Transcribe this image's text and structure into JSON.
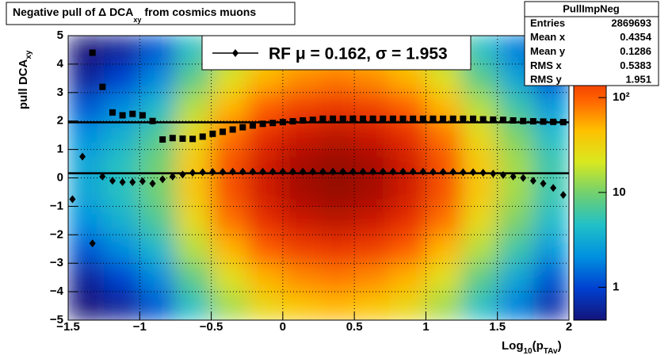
{
  "chart_data": {
    "type": "heatmap",
    "title_parts": [
      "Negative pull of Δ DCA",
      "xy",
      " from cosmics muons"
    ],
    "xlabel_parts": [
      "Log",
      "10",
      "(p",
      "TAv",
      ")"
    ],
    "ylabel_parts": [
      "pull DCA",
      "xy"
    ],
    "xlim": [
      -1.5,
      2
    ],
    "ylim": [
      -5,
      5
    ],
    "xticks": [
      {
        "value": -1.5,
        "label": "−1.5"
      },
      {
        "value": -1,
        "label": "−1"
      },
      {
        "value": -0.5,
        "label": "−0.5"
      },
      0,
      0.5,
      1,
      1.5,
      2
    ],
    "yticks": [
      {
        "value": -5,
        "label": "−5"
      },
      {
        "value": -4,
        "label": "−4"
      },
      {
        "value": -3,
        "label": "−3"
      },
      {
        "value": -2,
        "label": "−2"
      },
      {
        "value": -1,
        "label": "−1"
      },
      0,
      1,
      2,
      3,
      4,
      5
    ],
    "grid": true,
    "zlim": [
      0.45,
      450
    ],
    "zscale": "log",
    "zticks": [
      1,
      10,
      {
        "value": 100,
        "label": "10²"
      }
    ],
    "palette": [
      "#14147a",
      "#0040d0",
      "#0090e0",
      "#20c0c8",
      "#70d070",
      "#d8e820",
      "#ffc000",
      "#ff6000",
      "#e02000",
      "#800000"
    ],
    "heatmap": {
      "xbins": [
        -1.5,
        -1.25,
        -1,
        -0.75,
        -0.5,
        -0.25,
        0,
        0.25,
        0.5,
        0.75,
        1,
        1.25,
        1.5,
        1.75,
        2
      ],
      "ybins": [
        -5,
        -4,
        -3,
        -2,
        -1,
        0,
        1,
        2,
        3,
        4,
        5
      ],
      "z": [
        [
          0.4,
          0.6,
          1.2,
          4.8,
          14,
          30,
          42,
          48,
          42,
          30,
          14,
          4.8,
          1.8,
          0.7
        ],
        [
          0.6,
          1,
          2,
          8,
          24,
          50,
          70,
          80,
          70,
          50,
          24,
          8,
          3,
          1.2
        ],
        [
          1.2,
          2,
          4,
          16,
          48,
          100,
          140,
          160,
          140,
          100,
          48,
          16,
          6,
          2.4
        ],
        [
          2.1,
          3.5,
          7,
          28,
          84,
          175,
          245,
          280,
          245,
          175,
          84,
          28,
          10.5,
          4.2
        ],
        [
          2.9,
          4.8,
          9.5,
          38,
          114,
          238,
          333,
          380,
          333,
          238,
          114,
          38,
          14,
          5.7
        ],
        [
          2.9,
          4.8,
          9.5,
          38,
          114,
          238,
          333,
          380,
          333,
          238,
          114,
          38,
          14,
          5.7
        ],
        [
          2.1,
          3.5,
          7,
          28,
          84,
          175,
          245,
          280,
          245,
          175,
          84,
          28,
          10.5,
          4.2
        ],
        [
          1.2,
          2,
          4,
          16,
          48,
          100,
          140,
          160,
          140,
          100,
          48,
          16,
          6,
          2.4
        ],
        [
          0.6,
          1,
          2,
          8,
          24,
          50,
          70,
          80,
          70,
          50,
          24,
          8,
          3,
          1.2
        ],
        [
          0.4,
          0.6,
          1.2,
          4.8,
          14,
          30,
          42,
          48,
          42,
          30,
          14,
          4.8,
          1.8,
          0.7
        ]
      ]
    },
    "x": [
      -1.47,
      -1.4,
      -1.33,
      -1.26,
      -1.19,
      -1.12,
      -1.05,
      -0.98,
      -0.91,
      -0.84,
      -0.77,
      -0.7,
      -0.63,
      -0.56,
      -0.49,
      -0.42,
      -0.35,
      -0.28,
      -0.21,
      -0.14,
      -0.07,
      0,
      0.07,
      0.14,
      0.21,
      0.28,
      0.35,
      0.42,
      0.49,
      0.56,
      0.63,
      0.7,
      0.77,
      0.84,
      0.91,
      0.98,
      1.05,
      1.12,
      1.19,
      1.26,
      1.33,
      1.4,
      1.47,
      1.54,
      1.61,
      1.68,
      1.75,
      1.82,
      1.89,
      1.96
    ],
    "series": [
      {
        "marker": "diamond",
        "color": "#000000",
        "values": [
          -0.75,
          0.75,
          -2.3,
          0.05,
          -0.1,
          -0.15,
          -0.15,
          -0.12,
          -0.2,
          -0.05,
          0.05,
          0.12,
          0.18,
          0.2,
          0.21,
          0.21,
          0.22,
          0.22,
          0.22,
          0.22,
          0.22,
          0.22,
          0.22,
          0.22,
          0.22,
          0.22,
          0.22,
          0.22,
          0.22,
          0.22,
          0.22,
          0.22,
          0.22,
          0.22,
          0.22,
          0.22,
          0.21,
          0.21,
          0.21,
          0.2,
          0.2,
          0.18,
          0.15,
          0.1,
          0.05,
          0,
          -0.1,
          -0.2,
          -0.35,
          -0.6
        ]
      },
      {
        "marker": "square",
        "color": "#000000",
        "values": [
          null,
          null,
          4.4,
          3.2,
          2.3,
          2.2,
          2.25,
          2.2,
          2.0,
          1.35,
          1.4,
          1.38,
          1.37,
          1.45,
          1.55,
          1.62,
          1.7,
          1.78,
          1.84,
          1.9,
          1.93,
          1.96,
          1.99,
          2.02,
          2.04,
          2.08,
          2.08,
          2.08,
          2.08,
          2.08,
          2.08,
          2.08,
          2.08,
          2.08,
          2.08,
          2.08,
          2.08,
          2.08,
          2.08,
          2.08,
          2.08,
          2.06,
          2.05,
          2.04,
          2.02,
          2.0,
          1.99,
          1.98,
          1.97,
          1.96
        ]
      }
    ],
    "fit_lines": [
      0.162,
      1.953
    ],
    "legend_label": "RF μ =  0.162, σ =   1.953",
    "stats": {
      "title": "PullImpNeg",
      "rows": [
        [
          "Entries",
          2869693
        ],
        [
          "Mean x",
          0.4354
        ],
        [
          "Mean y",
          0.1286
        ],
        [
          "RMS x",
          0.5383
        ],
        [
          "RMS y",
          1.951
        ]
      ]
    }
  }
}
